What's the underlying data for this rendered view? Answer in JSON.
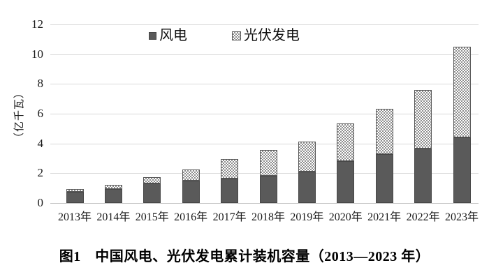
{
  "figure": {
    "caption": "图1　中国风电、光伏发电累计装机容量（2013—2023 年）"
  },
  "chart_data": {
    "type": "bar",
    "stacked": true,
    "categories": [
      "2013年",
      "2014年",
      "2015年",
      "2016年",
      "2017年",
      "2018年",
      "2019年",
      "2020年",
      "2021年",
      "2022年",
      "2023年"
    ],
    "series": [
      {
        "name": "风电",
        "values": [
          0.77,
          0.96,
          1.29,
          1.49,
          1.64,
          1.84,
          2.1,
          2.81,
          3.28,
          3.65,
          4.41
        ],
        "fill": "solid-dark-gray"
      },
      {
        "name": "光伏发电",
        "values": [
          0.19,
          0.28,
          0.43,
          0.77,
          1.3,
          1.74,
          2.04,
          2.53,
          3.06,
          3.93,
          6.09
        ],
        "fill": "checkerboard-pattern"
      }
    ],
    "ylabel": "（亿千瓦）",
    "ylim": [
      0,
      12
    ],
    "yticks": [
      0,
      2,
      4,
      6,
      8,
      10,
      12
    ],
    "grid": "horizontal",
    "legend_position": "top-center"
  },
  "colors": {
    "bar_wind": "#5a5a5a",
    "bar_solar_pattern": "#8e8e8e",
    "gridline": "#d9d9d9",
    "axis_line": "#bfbfbf",
    "text": "#1a1a1a",
    "background": "#ffffff"
  }
}
